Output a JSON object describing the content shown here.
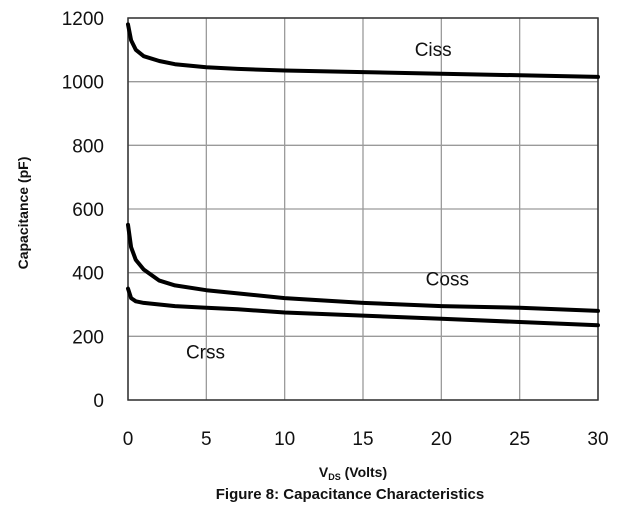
{
  "chart_data": {
    "type": "line",
    "title": "Figure 8: Capacitance Characteristics",
    "xlabel_main": "V",
    "xlabel_sub": "DS",
    "xlabel_unit": " (Volts)",
    "ylabel": "Capacitance (pF)",
    "xlim": [
      0,
      30
    ],
    "ylim": [
      0,
      1200
    ],
    "xticks": [
      0,
      5,
      10,
      15,
      20,
      25,
      30
    ],
    "yticks": [
      0,
      200,
      400,
      600,
      800,
      1000,
      1200
    ],
    "grid": true,
    "series": [
      {
        "name": "Ciss",
        "x": [
          0,
          0.2,
          0.5,
          1,
          2,
          3,
          5,
          7,
          10,
          15,
          20,
          25,
          30
        ],
        "y": [
          1180,
          1130,
          1100,
          1080,
          1065,
          1055,
          1045,
          1040,
          1035,
          1030,
          1025,
          1020,
          1015
        ]
      },
      {
        "name": "Coss",
        "x": [
          0,
          0.2,
          0.5,
          1,
          2,
          3,
          5,
          7,
          10,
          15,
          20,
          25,
          30
        ],
        "y": [
          550,
          480,
          440,
          410,
          375,
          360,
          345,
          335,
          320,
          305,
          295,
          290,
          280
        ]
      },
      {
        "name": "Crss",
        "x": [
          0,
          0.2,
          0.5,
          1,
          2,
          3,
          5,
          7,
          10,
          15,
          20,
          25,
          30
        ],
        "y": [
          350,
          320,
          310,
          305,
          300,
          295,
          290,
          285,
          275,
          265,
          255,
          245,
          235
        ]
      }
    ],
    "annotations": [
      {
        "text": "Ciss",
        "x": 18.3,
        "y": 1080
      },
      {
        "text": "Coss",
        "x": 19.0,
        "y": 360
      },
      {
        "text": "Crss",
        "x": 3.7,
        "y": 130
      }
    ]
  }
}
